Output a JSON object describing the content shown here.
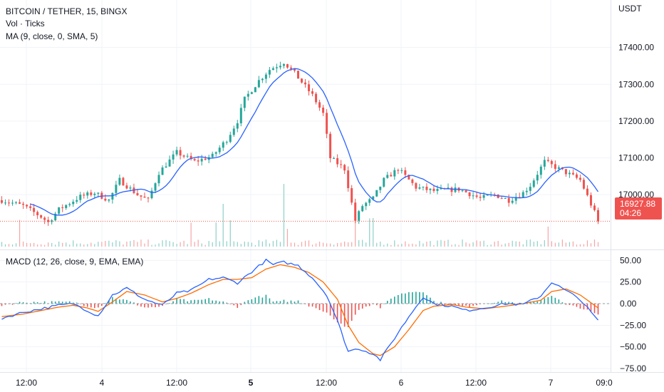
{
  "header": {
    "symbol": "BITCOIN / TETHER, 15, BINGX",
    "volume_label": "Vol · Ticks",
    "ma_label": "MA (9, close, 0, SMA, 5)",
    "macd_label": "MACD (12, 26, close, 9, EMA, EMA)"
  },
  "price_axis": {
    "unit": "USDT",
    "ticks": [
      "17400.00",
      "17300.00",
      "17200.00",
      "17100.00",
      "17000.00"
    ],
    "last_price": "16927.88",
    "countdown": "04:26"
  },
  "macd_axis": {
    "ticks": [
      "50.00",
      "25.00",
      "0.00",
      "−25.00",
      "−50.00",
      "−75.00"
    ]
  },
  "time_axis": {
    "ticks": [
      "12:00",
      "4",
      "12:00",
      "5",
      "12:00",
      "6",
      "12:00",
      "7",
      "09:0"
    ]
  },
  "colors": {
    "up": "#26a69a",
    "down": "#ef5350",
    "ma": "#2962ff",
    "macd": "#2962ff",
    "signal": "#ff6d00",
    "grid": "#f0f3fa",
    "last_price_bg": "#ef5350"
  },
  "chart_data": [
    {
      "type": "candlestick",
      "title": "BITCOIN / TETHER, 15, BINGX",
      "unit": "USDT",
      "ylim": [
        16850,
        17450
      ],
      "price_path": [
        [
          0,
          16985
        ],
        [
          6,
          16970
        ],
        [
          11,
          16940
        ],
        [
          13,
          16925
        ],
        [
          16,
          16960
        ],
        [
          22,
          16995
        ],
        [
          26,
          17005
        ],
        [
          30,
          16985
        ],
        [
          33,
          17040
        ],
        [
          38,
          17000
        ],
        [
          41,
          16985
        ],
        [
          44,
          17060
        ],
        [
          49,
          17115
        ],
        [
          54,
          17090
        ],
        [
          59,
          17105
        ],
        [
          63,
          17150
        ],
        [
          66,
          17200
        ],
        [
          68,
          17260
        ],
        [
          72,
          17310
        ],
        [
          75,
          17340
        ],
        [
          79,
          17360
        ],
        [
          82,
          17330
        ],
        [
          87,
          17270
        ],
        [
          90,
          17220
        ],
        [
          92,
          17100
        ],
        [
          96,
          17070
        ],
        [
          99,
          16930
        ],
        [
          101,
          16970
        ],
        [
          104,
          16990
        ],
        [
          107,
          17040
        ],
        [
          111,
          17070
        ],
        [
          116,
          17020
        ],
        [
          121,
          17010
        ],
        [
          128,
          17015
        ],
        [
          134,
          16990
        ],
        [
          138,
          17000
        ],
        [
          142,
          16985
        ],
        [
          146,
          17005
        ],
        [
          148,
          17025
        ],
        [
          152,
          17090
        ],
        [
          158,
          17060
        ],
        [
          162,
          17040
        ],
        [
          167,
          16930
        ]
      ],
      "last_price": 16927.88,
      "grid": true
    },
    {
      "type": "bar",
      "title": "Vol · Ticks"
    },
    {
      "type": "line",
      "title": "MACD (12, 26, close, 9, EMA, EMA)",
      "ylim": [
        -78,
        58
      ],
      "macd_path": [
        [
          0,
          -17
        ],
        [
          6,
          -10
        ],
        [
          11,
          -6
        ],
        [
          16,
          -2
        ],
        [
          20,
          0
        ],
        [
          24,
          -8
        ],
        [
          27,
          -14
        ],
        [
          31,
          10
        ],
        [
          35,
          18
        ],
        [
          40,
          5
        ],
        [
          45,
          -2
        ],
        [
          49,
          12
        ],
        [
          53,
          15
        ],
        [
          58,
          28
        ],
        [
          62,
          30
        ],
        [
          66,
          24
        ],
        [
          70,
          37
        ],
        [
          74,
          50
        ],
        [
          76,
          45
        ],
        [
          79,
          48
        ],
        [
          83,
          44
        ],
        [
          87,
          30
        ],
        [
          91,
          10
        ],
        [
          94,
          -20
        ],
        [
          97,
          -55
        ],
        [
          100,
          -52
        ],
        [
          104,
          -58
        ],
        [
          106,
          -65
        ],
        [
          110,
          -40
        ],
        [
          114,
          -15
        ],
        [
          118,
          8
        ],
        [
          121,
          0
        ],
        [
          126,
          -3
        ],
        [
          130,
          -8
        ],
        [
          135,
          -5
        ],
        [
          141,
          0
        ],
        [
          146,
          -1
        ],
        [
          151,
          9
        ],
        [
          154,
          25
        ],
        [
          158,
          15
        ],
        [
          162,
          5
        ],
        [
          167,
          -20
        ]
      ],
      "signal_path": [
        [
          0,
          -15
        ],
        [
          6,
          -12
        ],
        [
          11,
          -8
        ],
        [
          16,
          -4
        ],
        [
          20,
          -2
        ],
        [
          24,
          -5
        ],
        [
          27,
          -9
        ],
        [
          31,
          2
        ],
        [
          35,
          14
        ],
        [
          40,
          10
        ],
        [
          45,
          2
        ],
        [
          49,
          6
        ],
        [
          53,
          12
        ],
        [
          58,
          22
        ],
        [
          62,
          28
        ],
        [
          66,
          28
        ],
        [
          70,
          30
        ],
        [
          74,
          40
        ],
        [
          78,
          45
        ],
        [
          82,
          42
        ],
        [
          86,
          36
        ],
        [
          90,
          25
        ],
        [
          94,
          5
        ],
        [
          97,
          -25
        ],
        [
          100,
          -45
        ],
        [
          104,
          -58
        ],
        [
          106,
          -60
        ],
        [
          110,
          -50
        ],
        [
          114,
          -30
        ],
        [
          118,
          -8
        ],
        [
          121,
          -3
        ],
        [
          126,
          -1
        ],
        [
          130,
          -4
        ],
        [
          135,
          -6
        ],
        [
          141,
          -3
        ],
        [
          146,
          0
        ],
        [
          151,
          4
        ],
        [
          154,
          14
        ],
        [
          158,
          17
        ],
        [
          162,
          10
        ],
        [
          167,
          -5
        ]
      ],
      "grid": true
    }
  ]
}
